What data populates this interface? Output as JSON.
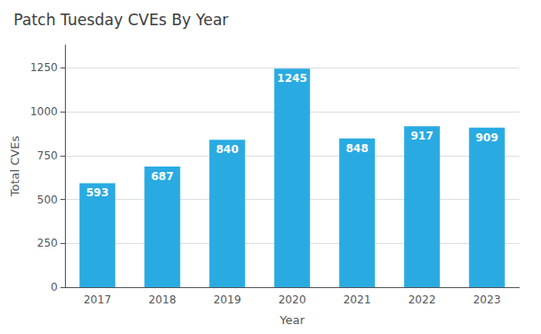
{
  "chart_data": {
    "type": "bar",
    "title": "Patch Tuesday CVEs By Year",
    "xlabel": "Year",
    "ylabel": "Total CVEs",
    "categories": [
      "2017",
      "2018",
      "2019",
      "2020",
      "2021",
      "2022",
      "2023"
    ],
    "values": [
      593,
      687,
      840,
      1245,
      848,
      917,
      909
    ],
    "color": "#29ABE2",
    "ylim": [
      0,
      1380
    ],
    "yticks": [
      0,
      250,
      500,
      750,
      1000,
      1250
    ],
    "grid": true,
    "data_labels": true
  }
}
